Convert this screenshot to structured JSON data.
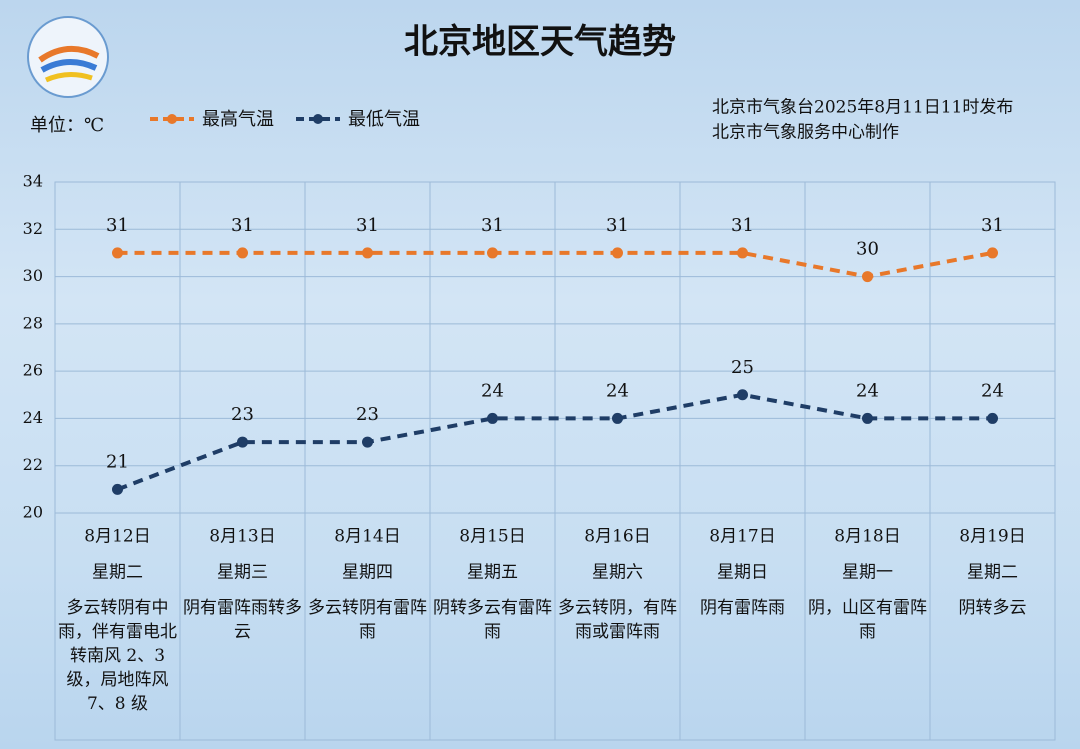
{
  "chart_data": {
    "type": "line",
    "title": "北京地区天气趋势",
    "unit_label": "单位：℃",
    "source_lines": [
      "北京市气象台2025年8月11日11时发布",
      "北京市气象服务中心制作"
    ],
    "categories": [
      "8月12日",
      "8月13日",
      "8月14日",
      "8月15日",
      "8月16日",
      "8月17日",
      "8月18日",
      "8月19日"
    ],
    "weekdays": [
      "星期二",
      "星期三",
      "星期四",
      "星期五",
      "星期六",
      "星期日",
      "星期一",
      "星期二"
    ],
    "descriptions": [
      "多云转阴有中雨，伴有雷电北转南风 2、3 级，局地阵风 7、8 级",
      "阴有雷阵雨转多云",
      "多云转阴有雷阵雨",
      "阴转多云有雷阵雨",
      "多云转阴，有阵雨或雷阵雨",
      "阴有雷阵雨",
      "阴，山区有雷阵雨",
      "阴转多云"
    ],
    "series": [
      {
        "name": "最高气温",
        "color": "#e8782a",
        "values": [
          31,
          31,
          31,
          31,
          31,
          31,
          30,
          31
        ]
      },
      {
        "name": "最低气温",
        "color": "#1f3d66",
        "values": [
          21,
          23,
          23,
          24,
          24,
          25,
          24,
          24
        ]
      }
    ],
    "ylim": [
      20,
      34
    ],
    "yticks": [
      20,
      22,
      24,
      26,
      28,
      30,
      32,
      34
    ],
    "grid": true
  }
}
